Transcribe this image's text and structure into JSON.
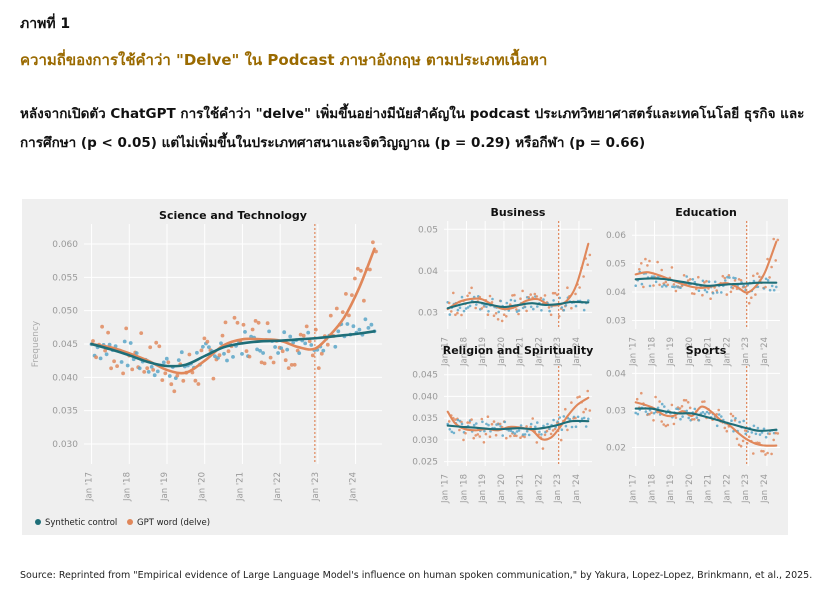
{
  "header": {
    "figure_label": "ภาพที่ 1",
    "title": "ความถี่ของการใช้คำว่า \"Delve\" ใน Podcast ภาษาอังกฤษ ตามประเภทเนื้อหา",
    "description": "หลังจากเปิดตัว ChatGPT การใช้คำว่า \"delve\" เพิ่มขึ้นอย่างมีนัยสำคัญใน podcast ประเภทวิทยาศาสตร์และเทคโนโลยี ธุรกิจ และการศึกษา (p < 0.05) แต่ไม่เพิ่มขึ้นในประเภทศาสนาและจิตวิญญาณ (p = 0.29) หรือกีฬา (p = 0.66)"
  },
  "source": "Source: Reprinted from \"Empirical evidence of Large Language Model's influence on human spoken communication,\" by Yakura, Lopez-Lopez, Brinkmann, et al., 2025.",
  "colors": {
    "synthetic": "#1e6e78",
    "gpt": "#e0875a",
    "synthetic_dot": "#5aa6c8",
    "gpt_dot": "#e08a5e",
    "vline": "#e0875a",
    "panel_bg": "#efefef",
    "grid": "#ffffff"
  },
  "legend": {
    "synthetic": "Synthetic control",
    "gpt": "GPT word (delve)"
  },
  "ylabel": "Frequency",
  "chart_data": [
    {
      "id": "science",
      "type": "line",
      "title": "Science and Technology",
      "ylim": [
        0.027,
        0.063
      ],
      "yticks": [
        "0.030",
        "0.035",
        "0.040",
        "0.045",
        "0.050",
        "0.055",
        "0.060"
      ],
      "xticks": [
        "Jan '17",
        "Jan '18",
        "Jan '19",
        "Jan '20",
        "Jan '21",
        "Jan '22",
        "Jan '23",
        "Jan '24"
      ],
      "xlim": [
        2016.8,
        2024.7
      ],
      "vline": 2022.92,
      "series": [
        {
          "name": "Synthetic control",
          "x": [
            2017.0,
            2017.5,
            2018.0,
            2018.5,
            2019.0,
            2019.5,
            2020.0,
            2020.5,
            2021.0,
            2021.5,
            2022.0,
            2022.5,
            2023.0,
            2023.5,
            2024.0,
            2024.5
          ],
          "values": [
            0.045,
            0.0442,
            0.0433,
            0.0423,
            0.0417,
            0.0419,
            0.0432,
            0.0445,
            0.0451,
            0.0454,
            0.0455,
            0.0457,
            0.0459,
            0.0462,
            0.0465,
            0.0469
          ]
        },
        {
          "name": "GPT word (delve)",
          "x": [
            2017.0,
            2017.5,
            2018.0,
            2018.5,
            2019.0,
            2019.5,
            2020.0,
            2020.5,
            2021.0,
            2021.5,
            2022.0,
            2022.5,
            2022.92,
            2023.3,
            2023.7,
            2024.1,
            2024.5
          ],
          "values": [
            0.045,
            0.0445,
            0.0436,
            0.0425,
            0.0411,
            0.0407,
            0.0425,
            0.0448,
            0.0457,
            0.0457,
            0.0455,
            0.0445,
            0.0443,
            0.0462,
            0.049,
            0.0535,
            0.0593
          ]
        }
      ]
    },
    {
      "id": "business",
      "type": "line",
      "title": "Business",
      "ylim": [
        0.026,
        0.052
      ],
      "yticks": [
        "0.03",
        "0.04",
        "0.05"
      ],
      "xticks": [
        "Jan '17",
        "Jan '18",
        "Jan '19",
        "Jan '20",
        "Jan '21",
        "Jan '22",
        "Jan '23",
        "Jan '24"
      ],
      "xlim": [
        2016.8,
        2024.7
      ],
      "vline": 2022.92,
      "series": [
        {
          "name": "Synthetic control",
          "x": [
            2017.0,
            2017.8,
            2018.5,
            2019.3,
            2020.0,
            2020.8,
            2021.5,
            2022.2,
            2022.92,
            2023.6,
            2024.5
          ],
          "values": [
            0.031,
            0.032,
            0.0325,
            0.0318,
            0.0313,
            0.0318,
            0.0322,
            0.0318,
            0.032,
            0.0325,
            0.0324
          ]
        },
        {
          "name": "GPT word (delve)",
          "x": [
            2017.0,
            2017.6,
            2018.2,
            2018.8,
            2019.4,
            2020.0,
            2020.6,
            2021.2,
            2021.8,
            2022.4,
            2022.92,
            2023.4,
            2023.9,
            2024.5
          ],
          "values": [
            0.0308,
            0.0325,
            0.0332,
            0.0332,
            0.0318,
            0.0308,
            0.0313,
            0.0328,
            0.0332,
            0.0318,
            0.0318,
            0.033,
            0.037,
            0.0465
          ]
        }
      ]
    },
    {
      "id": "education",
      "type": "line",
      "title": "Education",
      "ylim": [
        0.027,
        0.065
      ],
      "yticks": [
        "0.03",
        "0.04",
        "0.05",
        "0.06"
      ],
      "xticks": [
        "Jan '17",
        "Jan '18",
        "Jan '19",
        "Jan '20",
        "Jan '21",
        "Jan '22",
        "Jan '23",
        "Jan '24"
      ],
      "xlim": [
        2016.8,
        2024.7
      ],
      "vline": 2022.92,
      "series": [
        {
          "name": "Synthetic control",
          "x": [
            2017.0,
            2017.8,
            2018.5,
            2019.3,
            2020.0,
            2020.8,
            2021.5,
            2022.2,
            2022.92,
            2023.6,
            2024.5
          ],
          "values": [
            0.0445,
            0.0448,
            0.0446,
            0.0438,
            0.043,
            0.0422,
            0.0425,
            0.0428,
            0.043,
            0.0433,
            0.0433
          ]
        },
        {
          "name": "GPT word (delve)",
          "x": [
            2017.0,
            2017.6,
            2018.2,
            2018.8,
            2019.4,
            2020.0,
            2020.6,
            2021.2,
            2021.8,
            2022.4,
            2022.92,
            2023.4,
            2023.9,
            2024.5
          ],
          "values": [
            0.0462,
            0.047,
            0.046,
            0.0445,
            0.043,
            0.0418,
            0.0415,
            0.0422,
            0.0432,
            0.0418,
            0.0398,
            0.042,
            0.047,
            0.0577
          ]
        }
      ]
    },
    {
      "id": "religion",
      "type": "line",
      "title": "Religion and Spirituality",
      "ylim": [
        0.024,
        0.047
      ],
      "yticks": [
        "0.025",
        "0.030",
        "0.035",
        "0.040",
        "0.045"
      ],
      "xticks": [
        "Jan '17",
        "Jan '18",
        "Jan '19",
        "Jan '20",
        "Jan '21",
        "Jan '22",
        "Jan '23",
        "Jan '24"
      ],
      "xlim": [
        2016.8,
        2024.7
      ],
      "vline": 2022.92,
      "series": [
        {
          "name": "Synthetic control",
          "x": [
            2017.0,
            2017.8,
            2018.5,
            2019.3,
            2020.0,
            2020.8,
            2021.5,
            2022.2,
            2022.92,
            2023.6,
            2024.5
          ],
          "values": [
            0.0333,
            0.033,
            0.0328,
            0.0325,
            0.0325,
            0.0327,
            0.0325,
            0.0328,
            0.0335,
            0.0343,
            0.0343
          ]
        },
        {
          "name": "GPT word (delve)",
          "x": [
            2017.0,
            2017.4,
            2017.9,
            2018.5,
            2019.1,
            2019.7,
            2020.3,
            2020.9,
            2021.5,
            2022.0,
            2022.5,
            2022.92,
            2023.4,
            2023.9,
            2024.5
          ],
          "values": [
            0.0365,
            0.0338,
            0.0325,
            0.0322,
            0.0325,
            0.0322,
            0.033,
            0.0328,
            0.0322,
            0.0302,
            0.0305,
            0.0325,
            0.0355,
            0.038,
            0.0397
          ]
        }
      ]
    },
    {
      "id": "sports",
      "type": "line",
      "title": "Sports",
      "ylim": [
        0.015,
        0.042
      ],
      "yticks": [
        "0.02",
        "0.03",
        "0.04"
      ],
      "xticks": [
        "Jan '17",
        "Jan '18",
        "Jan '19",
        "Jan '20",
        "Jan '21",
        "Jan '22",
        "Jan '23",
        "Jan '24"
      ],
      "xlim": [
        2016.8,
        2024.7
      ],
      "vline": 2022.92,
      "series": [
        {
          "name": "Synthetic control",
          "x": [
            2017.0,
            2017.8,
            2018.5,
            2019.3,
            2020.0,
            2020.8,
            2021.5,
            2022.2,
            2022.92,
            2023.6,
            2024.5
          ],
          "values": [
            0.0305,
            0.0305,
            0.0298,
            0.0292,
            0.0292,
            0.0282,
            0.0272,
            0.0262,
            0.0252,
            0.0245,
            0.0248
          ]
        },
        {
          "name": "GPT word (delve)",
          "x": [
            2017.0,
            2017.5,
            2018.0,
            2018.5,
            2019.0,
            2019.5,
            2020.0,
            2020.5,
            2021.0,
            2021.5,
            2022.0,
            2022.5,
            2022.92,
            2023.4,
            2023.9,
            2024.5
          ],
          "values": [
            0.0322,
            0.0315,
            0.0305,
            0.0288,
            0.0285,
            0.0298,
            0.0285,
            0.031,
            0.0298,
            0.0275,
            0.026,
            0.0238,
            0.0222,
            0.021,
            0.0205,
            0.0205
          ]
        }
      ]
    }
  ]
}
